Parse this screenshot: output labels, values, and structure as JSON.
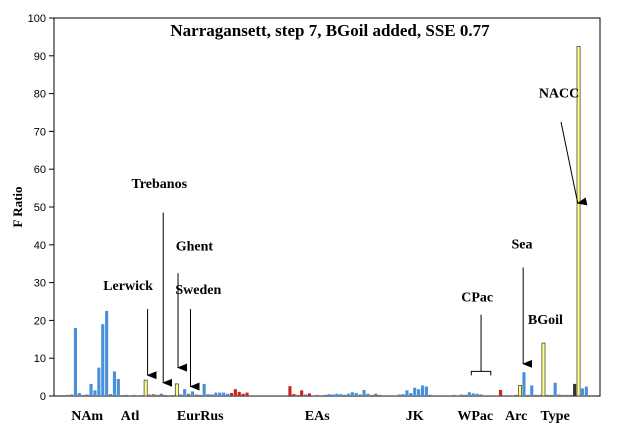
{
  "chart_data": {
    "type": "bar",
    "title": "Narragansett, step 7, BGoil added, SSE 0.77",
    "ylabel": "F Ratio",
    "xlabel": "",
    "ylim": [
      0,
      100
    ],
    "yticks": [
      0,
      10,
      20,
      30,
      40,
      50,
      60,
      70,
      80,
      90,
      100
    ],
    "grid": false,
    "colors": {
      "blue": "#4a90d9",
      "red": "#cc2222",
      "yellow": "#ffff80",
      "gray": "#777777",
      "dark": "#333333"
    },
    "groups": [
      {
        "label": "NAm",
        "x": 6
      },
      {
        "label": "Atl",
        "x": 17
      },
      {
        "label": "EurRus",
        "x": 35
      },
      {
        "label": "EAs",
        "x": 65
      },
      {
        "label": "JK",
        "x": 90
      },
      {
        "label": "WPac",
        "x": 105.5
      },
      {
        "label": "Arc",
        "x": 116
      },
      {
        "label": "Type",
        "x": 126
      }
    ],
    "bars": [
      {
        "x": 1,
        "v": 0.3,
        "c": "gray"
      },
      {
        "x": 2,
        "v": 0.4,
        "c": "gray"
      },
      {
        "x": 3,
        "v": 18.0,
        "c": "blue"
      },
      {
        "x": 4,
        "v": 0.8,
        "c": "blue"
      },
      {
        "x": 5,
        "v": 0.3,
        "c": "gray"
      },
      {
        "x": 6,
        "v": 0.4,
        "c": "gray"
      },
      {
        "x": 7,
        "v": 3.2,
        "c": "blue"
      },
      {
        "x": 8,
        "v": 1.5,
        "c": "blue"
      },
      {
        "x": 9,
        "v": 7.5,
        "c": "blue"
      },
      {
        "x": 10,
        "v": 19.0,
        "c": "blue"
      },
      {
        "x": 11,
        "v": 22.5,
        "c": "blue"
      },
      {
        "x": 12,
        "v": 0.5,
        "c": "gray"
      },
      {
        "x": 13,
        "v": 6.5,
        "c": "blue"
      },
      {
        "x": 14,
        "v": 4.5,
        "c": "blue"
      },
      {
        "x": 16,
        "v": 0.3,
        "c": "gray"
      },
      {
        "x": 17,
        "v": 0.2,
        "c": "gray"
      },
      {
        "x": 18,
        "v": 0.3,
        "c": "gray"
      },
      {
        "x": 19,
        "v": 0.2,
        "c": "gray"
      },
      {
        "x": 21,
        "v": 4.2,
        "c": "yellow"
      },
      {
        "x": 22,
        "v": 0.4,
        "c": "gray"
      },
      {
        "x": 23,
        "v": 0.5,
        "c": "gray"
      },
      {
        "x": 24,
        "v": 0.3,
        "c": "gray"
      },
      {
        "x": 25,
        "v": 0.6,
        "c": "gray"
      },
      {
        "x": 26,
        "v": 0.3,
        "c": "gray"
      },
      {
        "x": 27,
        "v": 0.2,
        "c": "gray"
      },
      {
        "x": 29,
        "v": 3.2,
        "c": "yellow"
      },
      {
        "x": 30,
        "v": 0.4,
        "c": "gray"
      },
      {
        "x": 31,
        "v": 1.8,
        "c": "blue"
      },
      {
        "x": 32,
        "v": 0.6,
        "c": "gray"
      },
      {
        "x": 33,
        "v": 1.2,
        "c": "blue"
      },
      {
        "x": 34,
        "v": 0.4,
        "c": "gray"
      },
      {
        "x": 35,
        "v": 0.3,
        "c": "gray"
      },
      {
        "x": 36,
        "v": 3.2,
        "c": "blue"
      },
      {
        "x": 37,
        "v": 0.5,
        "c": "blue"
      },
      {
        "x": 38,
        "v": 0.4,
        "c": "gray"
      },
      {
        "x": 39,
        "v": 0.9,
        "c": "blue"
      },
      {
        "x": 40,
        "v": 0.9,
        "c": "blue"
      },
      {
        "x": 41,
        "v": 0.9,
        "c": "blue"
      },
      {
        "x": 42,
        "v": 0.6,
        "c": "blue"
      },
      {
        "x": 43,
        "v": 0.8,
        "c": "red"
      },
      {
        "x": 44,
        "v": 1.8,
        "c": "red"
      },
      {
        "x": 45,
        "v": 1.1,
        "c": "red"
      },
      {
        "x": 46,
        "v": 0.6,
        "c": "red"
      },
      {
        "x": 47,
        "v": 0.9,
        "c": "red"
      },
      {
        "x": 48,
        "v": 0.2,
        "c": "gray"
      },
      {
        "x": 49,
        "v": 0.2,
        "c": "gray"
      },
      {
        "x": 50,
        "v": 0.2,
        "c": "gray"
      },
      {
        "x": 51,
        "v": 0.2,
        "c": "gray"
      },
      {
        "x": 52,
        "v": 0.2,
        "c": "gray"
      },
      {
        "x": 53,
        "v": 0.2,
        "c": "gray"
      },
      {
        "x": 54,
        "v": 0.2,
        "c": "gray"
      },
      {
        "x": 55,
        "v": 0.2,
        "c": "gray"
      },
      {
        "x": 56,
        "v": 0.2,
        "c": "gray"
      },
      {
        "x": 57,
        "v": 0.2,
        "c": "gray"
      },
      {
        "x": 58,
        "v": 2.6,
        "c": "red"
      },
      {
        "x": 59,
        "v": 0.5,
        "c": "red"
      },
      {
        "x": 60,
        "v": 0.3,
        "c": "gray"
      },
      {
        "x": 61,
        "v": 1.5,
        "c": "red"
      },
      {
        "x": 62,
        "v": 0.4,
        "c": "gray"
      },
      {
        "x": 63,
        "v": 0.7,
        "c": "red"
      },
      {
        "x": 64,
        "v": 0.2,
        "c": "gray"
      },
      {
        "x": 65,
        "v": 0.3,
        "c": "gray"
      },
      {
        "x": 66,
        "v": 0.2,
        "c": "gray"
      },
      {
        "x": 67,
        "v": 0.3,
        "c": "gray"
      },
      {
        "x": 68,
        "v": 0.5,
        "c": "blue"
      },
      {
        "x": 69,
        "v": 0.4,
        "c": "blue"
      },
      {
        "x": 70,
        "v": 0.6,
        "c": "blue"
      },
      {
        "x": 71,
        "v": 0.5,
        "c": "blue"
      },
      {
        "x": 72,
        "v": 0.3,
        "c": "gray"
      },
      {
        "x": 73,
        "v": 0.6,
        "c": "blue"
      },
      {
        "x": 74,
        "v": 1.0,
        "c": "blue"
      },
      {
        "x": 75,
        "v": 0.8,
        "c": "blue"
      },
      {
        "x": 76,
        "v": 0.4,
        "c": "gray"
      },
      {
        "x": 77,
        "v": 1.6,
        "c": "blue"
      },
      {
        "x": 78,
        "v": 0.6,
        "c": "blue"
      },
      {
        "x": 79,
        "v": 0.3,
        "c": "gray"
      },
      {
        "x": 80,
        "v": 0.6,
        "c": "gray"
      },
      {
        "x": 81,
        "v": 0.3,
        "c": "gray"
      },
      {
        "x": 82,
        "v": 0.2,
        "c": "gray"
      },
      {
        "x": 83,
        "v": 0.2,
        "c": "gray"
      },
      {
        "x": 84,
        "v": 0.2,
        "c": "gray"
      },
      {
        "x": 85,
        "v": 0.2,
        "c": "gray"
      },
      {
        "x": 86,
        "v": 0.4,
        "c": "blue"
      },
      {
        "x": 87,
        "v": 0.5,
        "c": "blue"
      },
      {
        "x": 88,
        "v": 1.5,
        "c": "blue"
      },
      {
        "x": 89,
        "v": 0.8,
        "c": "blue"
      },
      {
        "x": 90,
        "v": 2.2,
        "c": "blue"
      },
      {
        "x": 91,
        "v": 1.8,
        "c": "blue"
      },
      {
        "x": 92,
        "v": 2.8,
        "c": "blue"
      },
      {
        "x": 93,
        "v": 2.5,
        "c": "blue"
      },
      {
        "x": 94,
        "v": 0.3,
        "c": "gray"
      },
      {
        "x": 95,
        "v": 0.2,
        "c": "gray"
      },
      {
        "x": 96,
        "v": 0.2,
        "c": "gray"
      },
      {
        "x": 97,
        "v": 0.2,
        "c": "gray"
      },
      {
        "x": 98,
        "v": 0.2,
        "c": "gray"
      },
      {
        "x": 99,
        "v": 0.2,
        "c": "gray"
      },
      {
        "x": 100,
        "v": 0.3,
        "c": "gray"
      },
      {
        "x": 101,
        "v": 0.2,
        "c": "gray"
      },
      {
        "x": 102,
        "v": 0.4,
        "c": "blue"
      },
      {
        "x": 103,
        "v": 0.3,
        "c": "gray"
      },
      {
        "x": 104,
        "v": 1.0,
        "c": "blue"
      },
      {
        "x": 105,
        "v": 0.7,
        "c": "blue"
      },
      {
        "x": 106,
        "v": 0.6,
        "c": "blue"
      },
      {
        "x": 107,
        "v": 0.4,
        "c": "gray"
      },
      {
        "x": 108,
        "v": 0.2,
        "c": "gray"
      },
      {
        "x": 109,
        "v": 0.2,
        "c": "gray"
      },
      {
        "x": 110,
        "v": 0.2,
        "c": "gray"
      },
      {
        "x": 111,
        "v": 0.2,
        "c": "gray"
      },
      {
        "x": 112,
        "v": 1.6,
        "c": "red"
      },
      {
        "x": 113,
        "v": 0.2,
        "c": "gray"
      },
      {
        "x": 114,
        "v": 0.2,
        "c": "gray"
      },
      {
        "x": 115,
        "v": 0.2,
        "c": "gray"
      },
      {
        "x": 116,
        "v": 0.3,
        "c": "gray"
      },
      {
        "x": 117,
        "v": 2.8,
        "c": "yellow"
      },
      {
        "x": 118,
        "v": 6.3,
        "c": "blue"
      },
      {
        "x": 119,
        "v": 0.3,
        "c": "gray"
      },
      {
        "x": 120,
        "v": 2.8,
        "c": "blue"
      },
      {
        "x": 121,
        "v": 0.3,
        "c": "gray"
      },
      {
        "x": 122,
        "v": 0.3,
        "c": "gray"
      },
      {
        "x": 123,
        "v": 14.0,
        "c": "yellow"
      },
      {
        "x": 124,
        "v": 0.3,
        "c": "gray"
      },
      {
        "x": 125,
        "v": 0.3,
        "c": "gray"
      },
      {
        "x": 126,
        "v": 3.5,
        "c": "blue"
      },
      {
        "x": 127,
        "v": 0.4,
        "c": "gray"
      },
      {
        "x": 128,
        "v": 0.3,
        "c": "gray"
      },
      {
        "x": 129,
        "v": 0.3,
        "c": "gray"
      },
      {
        "x": 130,
        "v": 0.3,
        "c": "gray"
      },
      {
        "x": 131,
        "v": 3.2,
        "c": "dark"
      },
      {
        "x": 132,
        "v": 92.5,
        "c": "yellow"
      },
      {
        "x": 133,
        "v": 2.0,
        "c": "blue"
      },
      {
        "x": 134,
        "v": 2.5,
        "c": "blue"
      }
    ],
    "annotations": [
      {
        "label": "Trebanos",
        "tx": 24.5,
        "ty": 55,
        "from": [
          25.5,
          48.5
        ],
        "to": [
          25.5,
          3.5
        ],
        "arrow": true
      },
      {
        "label": "Ghent",
        "tx": 33.5,
        "ty": 38.5,
        "from": [
          29.3,
          32.5
        ],
        "to": [
          29.3,
          7.5
        ],
        "arrow": true
      },
      {
        "label": "Lerwick",
        "tx": 16.5,
        "ty": 28,
        "from": [
          21.5,
          23
        ],
        "to": [
          21.5,
          5.5
        ],
        "arrow": true
      },
      {
        "label": "Sweden",
        "tx": 34.5,
        "ty": 27,
        "from": [
          32.5,
          23
        ],
        "to": [
          32.5,
          2.5
        ],
        "arrow": true
      },
      {
        "label": "CPac",
        "tx": 106,
        "ty": 25,
        "from": [
          107,
          21.5
        ],
        "to": [
          107,
          8.5
        ],
        "arrow": false,
        "brace": [
          104.5,
          109.5,
          6.5
        ]
      },
      {
        "label": "Sea",
        "tx": 117.5,
        "ty": 39,
        "from": [
          117.8,
          34
        ],
        "to": [
          117.8,
          8.5
        ],
        "arrow": true
      },
      {
        "label": "BGoil",
        "tx": 123.5,
        "ty": 19,
        "from": null,
        "to": null,
        "arrow": false
      },
      {
        "label": "NACC",
        "tx": 127,
        "ty": 79,
        "from": [
          127.5,
          72.5
        ],
        "to": [
          131.8,
          51
        ],
        "arrow": true
      }
    ]
  }
}
